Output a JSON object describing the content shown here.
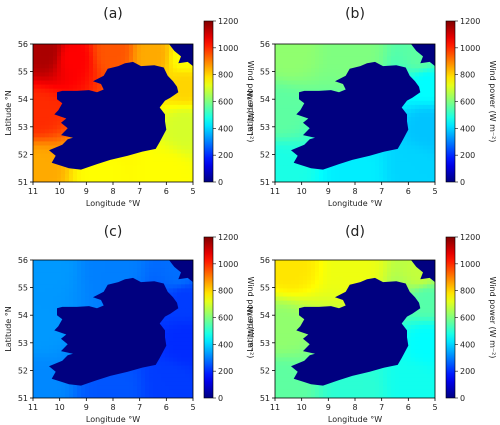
{
  "colorbar": {
    "label": "Wind power (W m⁻²)",
    "ticks": [
      0,
      200,
      400,
      600,
      800,
      1000,
      1200
    ],
    "range": [
      0,
      1200
    ],
    "colormap": "jet"
  },
  "chart_data": [
    {
      "type": "heatmap",
      "panel": "(a)",
      "xlabel": "Longitude °W",
      "ylabel": "Latitude °N",
      "xticks": [
        11,
        10,
        9,
        8,
        7,
        6,
        5
      ],
      "yticks": [
        51,
        52,
        53,
        54,
        55,
        56
      ],
      "xlim": [
        11,
        5
      ],
      "ylim": [
        51,
        56
      ],
      "land_value": 0,
      "sea_value_range": [
        700,
        1200
      ],
      "field": [
        {
          "lon": 10.5,
          "lat": 55.7,
          "value": 1150
        },
        {
          "lon": 9.5,
          "lat": 55.5,
          "value": 1050
        },
        {
          "lon": 8.0,
          "lat": 55.7,
          "value": 950
        },
        {
          "lon": 6.5,
          "lat": 55.6,
          "value": 850
        },
        {
          "lon": 5.3,
          "lat": 55.5,
          "value": 750
        },
        {
          "lon": 10.8,
          "lat": 53.5,
          "value": 1000
        },
        {
          "lon": 10.8,
          "lat": 51.5,
          "value": 850
        },
        {
          "lon": 8.5,
          "lat": 51.3,
          "value": 750
        },
        {
          "lon": 6.0,
          "lat": 51.3,
          "value": 750
        },
        {
          "lon": 5.3,
          "lat": 53.0,
          "value": 700
        },
        {
          "lon": 5.3,
          "lat": 54.5,
          "value": 800
        }
      ]
    },
    {
      "type": "heatmap",
      "panel": "(b)",
      "xlabel": "Longitude °W",
      "ylabel": "Latitude °N",
      "xticks": [
        11,
        10,
        9,
        8,
        7,
        6,
        5
      ],
      "yticks": [
        51,
        52,
        53,
        54,
        55,
        56
      ],
      "xlim": [
        11,
        5
      ],
      "ylim": [
        51,
        56
      ],
      "land_value": 0,
      "sea_value_range": [
        350,
        650
      ],
      "field": [
        {
          "lon": 10.5,
          "lat": 55.7,
          "value": 620
        },
        {
          "lon": 8.0,
          "lat": 55.7,
          "value": 600
        },
        {
          "lon": 5.5,
          "lat": 55.5,
          "value": 560
        },
        {
          "lon": 10.8,
          "lat": 53.5,
          "value": 560
        },
        {
          "lon": 10.8,
          "lat": 51.5,
          "value": 480
        },
        {
          "lon": 8.0,
          "lat": 51.3,
          "value": 430
        },
        {
          "lon": 5.8,
          "lat": 51.5,
          "value": 400
        },
        {
          "lon": 5.3,
          "lat": 53.0,
          "value": 380
        },
        {
          "lon": 5.3,
          "lat": 54.6,
          "value": 450
        }
      ]
    },
    {
      "type": "heatmap",
      "panel": "(c)",
      "xlabel": "Longitude °W",
      "ylabel": "Latitude °N",
      "xticks": [
        11,
        10,
        9,
        8,
        7,
        6,
        5
      ],
      "yticks": [
        51,
        52,
        53,
        54,
        55,
        56
      ],
      "xlim": [
        11,
        5
      ],
      "ylim": [
        51,
        56
      ],
      "land_value": 0,
      "sea_value_range": [
        150,
        380
      ],
      "field": [
        {
          "lon": 10.5,
          "lat": 55.7,
          "value": 330
        },
        {
          "lon": 8.0,
          "lat": 55.7,
          "value": 300
        },
        {
          "lon": 5.5,
          "lat": 55.5,
          "value": 280
        },
        {
          "lon": 10.8,
          "lat": 53.5,
          "value": 330
        },
        {
          "lon": 10.8,
          "lat": 51.5,
          "value": 310
        },
        {
          "lon": 8.0,
          "lat": 51.3,
          "value": 250
        },
        {
          "lon": 5.8,
          "lat": 51.5,
          "value": 220
        },
        {
          "lon": 5.3,
          "lat": 53.0,
          "value": 200
        },
        {
          "lon": 5.3,
          "lat": 54.6,
          "value": 220
        }
      ]
    },
    {
      "type": "heatmap",
      "panel": "(d)",
      "xlabel": "Longitude °W",
      "ylabel": "Latitude °N",
      "xticks": [
        11,
        10,
        9,
        8,
        7,
        6,
        5
      ],
      "yticks": [
        51,
        52,
        53,
        54,
        55,
        56
      ],
      "xlim": [
        11,
        5
      ],
      "ylim": [
        51,
        56
      ],
      "land_value": 0,
      "sea_value_range": [
        400,
        800
      ],
      "field": [
        {
          "lon": 10.5,
          "lat": 55.7,
          "value": 780
        },
        {
          "lon": 8.0,
          "lat": 55.7,
          "value": 730
        },
        {
          "lon": 5.5,
          "lat": 55.5,
          "value": 680
        },
        {
          "lon": 10.8,
          "lat": 53.5,
          "value": 620
        },
        {
          "lon": 10.8,
          "lat": 51.5,
          "value": 560
        },
        {
          "lon": 8.0,
          "lat": 51.3,
          "value": 500
        },
        {
          "lon": 5.8,
          "lat": 51.5,
          "value": 470
        },
        {
          "lon": 5.3,
          "lat": 53.0,
          "value": 450
        },
        {
          "lon": 5.3,
          "lat": 54.6,
          "value": 550
        }
      ]
    }
  ]
}
